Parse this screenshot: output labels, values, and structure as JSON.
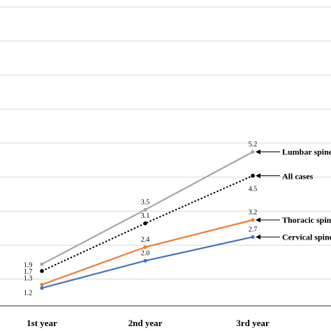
{
  "chart_data": {
    "type": "line",
    "title": "",
    "xlabel": "",
    "ylabel": "",
    "categories": [
      "1st year",
      "2nd year",
      "3rd year"
    ],
    "ylim": [
      1.0,
      5.5
    ],
    "grid": true,
    "series": [
      {
        "name": "Lumbar spine",
        "values": [
          1.9,
          3.5,
          5.2
        ],
        "labels": [
          "1.9",
          "3.5",
          "5.2"
        ],
        "color": "#a6a6a6",
        "dashed": false
      },
      {
        "name": "All cases",
        "values": [
          1.7,
          3.1,
          4.5
        ],
        "labels": [
          "1.7",
          "3.1",
          "4.5"
        ],
        "color": "#000000",
        "dashed": true
      },
      {
        "name": "Thoracic spine",
        "values": [
          1.3,
          2.4,
          3.2
        ],
        "labels": [
          "1.3",
          "2.4",
          "3.2"
        ],
        "color": "#ed7d31",
        "dashed": false
      },
      {
        "name": "Cervical spine",
        "values": [
          1.2,
          2.0,
          2.7
        ],
        "labels": [
          "1.2",
          "2.0",
          "2.7"
        ],
        "color": "#4472c4",
        "dashed": false
      }
    ]
  }
}
